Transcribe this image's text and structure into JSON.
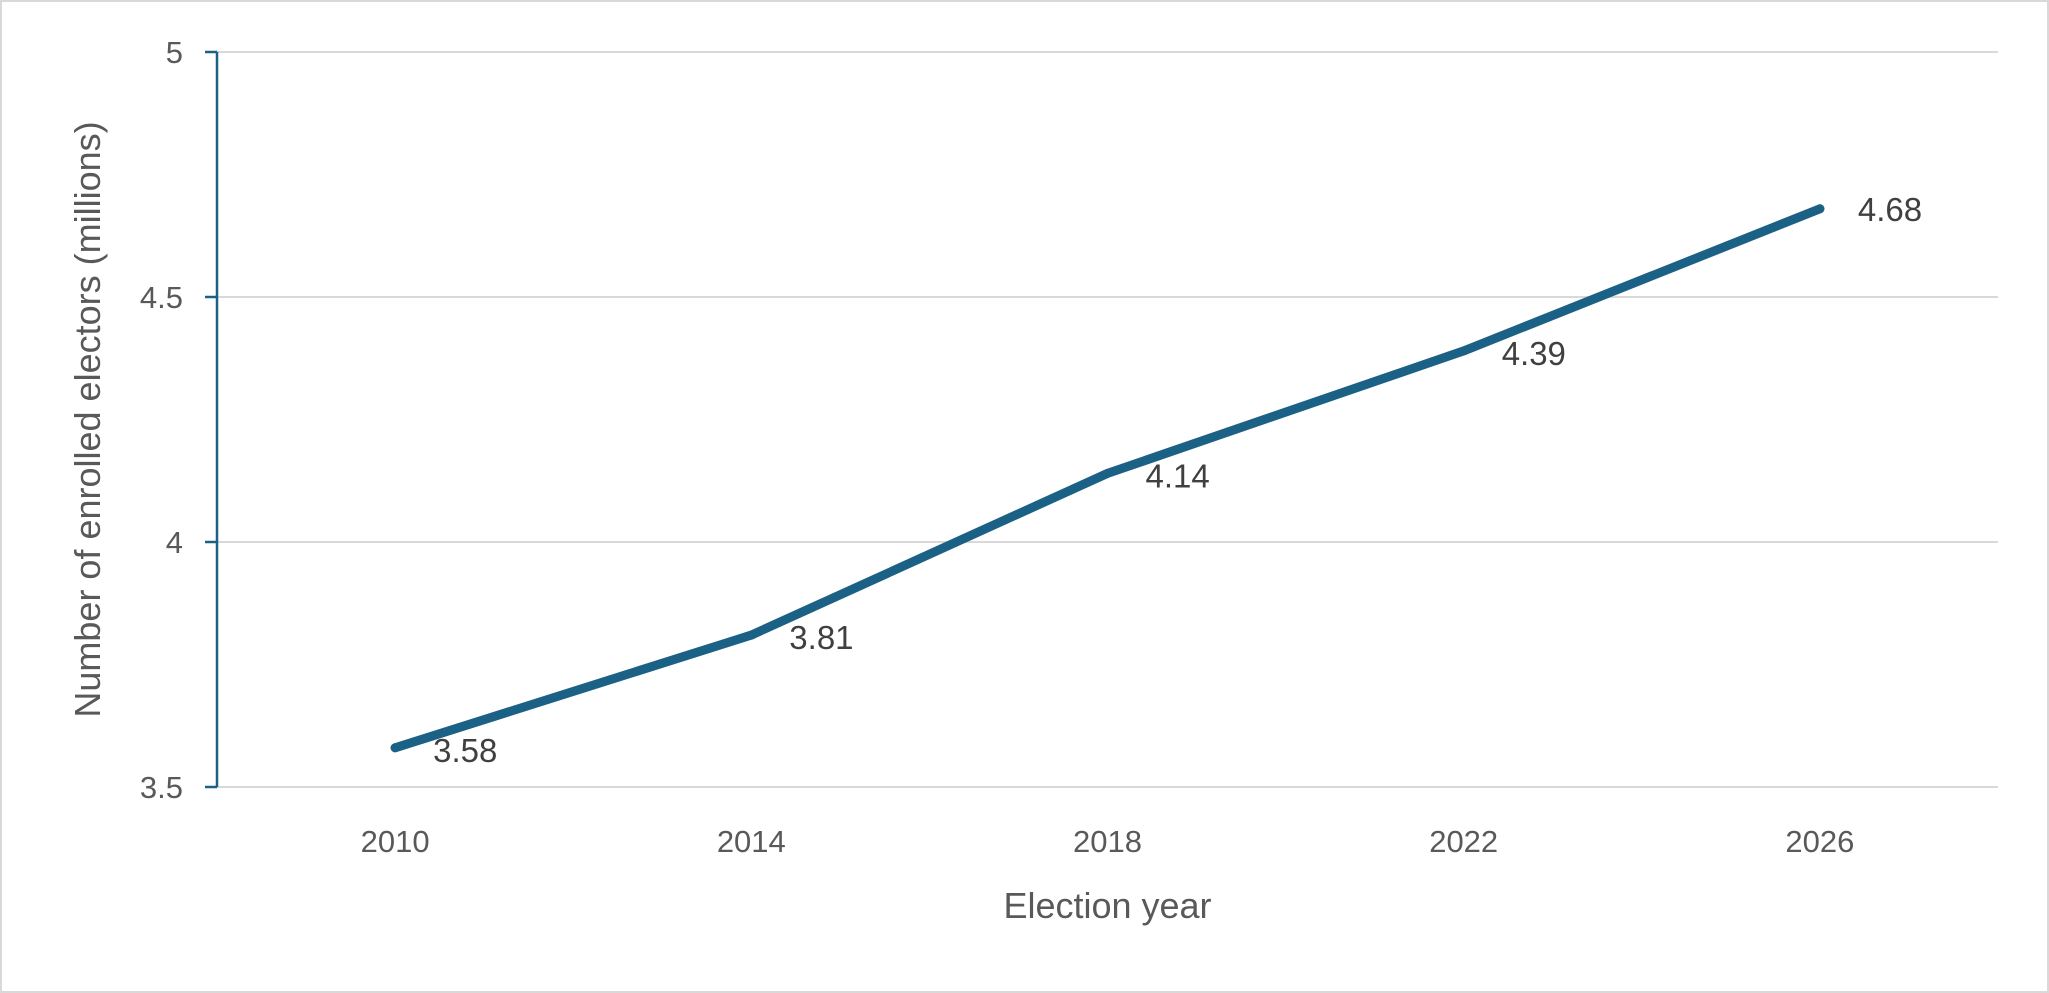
{
  "chart_data": {
    "type": "line",
    "title": "",
    "xlabel": "Election year",
    "ylabel": "Number of enrolled electors (millions)",
    "categories": [
      "2010",
      "2014",
      "2018",
      "2022",
      "2026"
    ],
    "series": [
      {
        "values": [
          3.58,
          3.81,
          4.14,
          4.39,
          4.68
        ],
        "color": "#1b6185"
      }
    ],
    "data_labels": [
      "3.58",
      "3.81",
      "4.14",
      "4.39",
      "4.68"
    ],
    "ylim": [
      3.5,
      5
    ],
    "y_ticks": [
      "3.5",
      "4",
      "4.5",
      "5"
    ],
    "grid": true,
    "legend": "none",
    "colors": {
      "line": "#1b6185",
      "axis": "#1b6185",
      "gridline": "#d9d9d9"
    }
  }
}
